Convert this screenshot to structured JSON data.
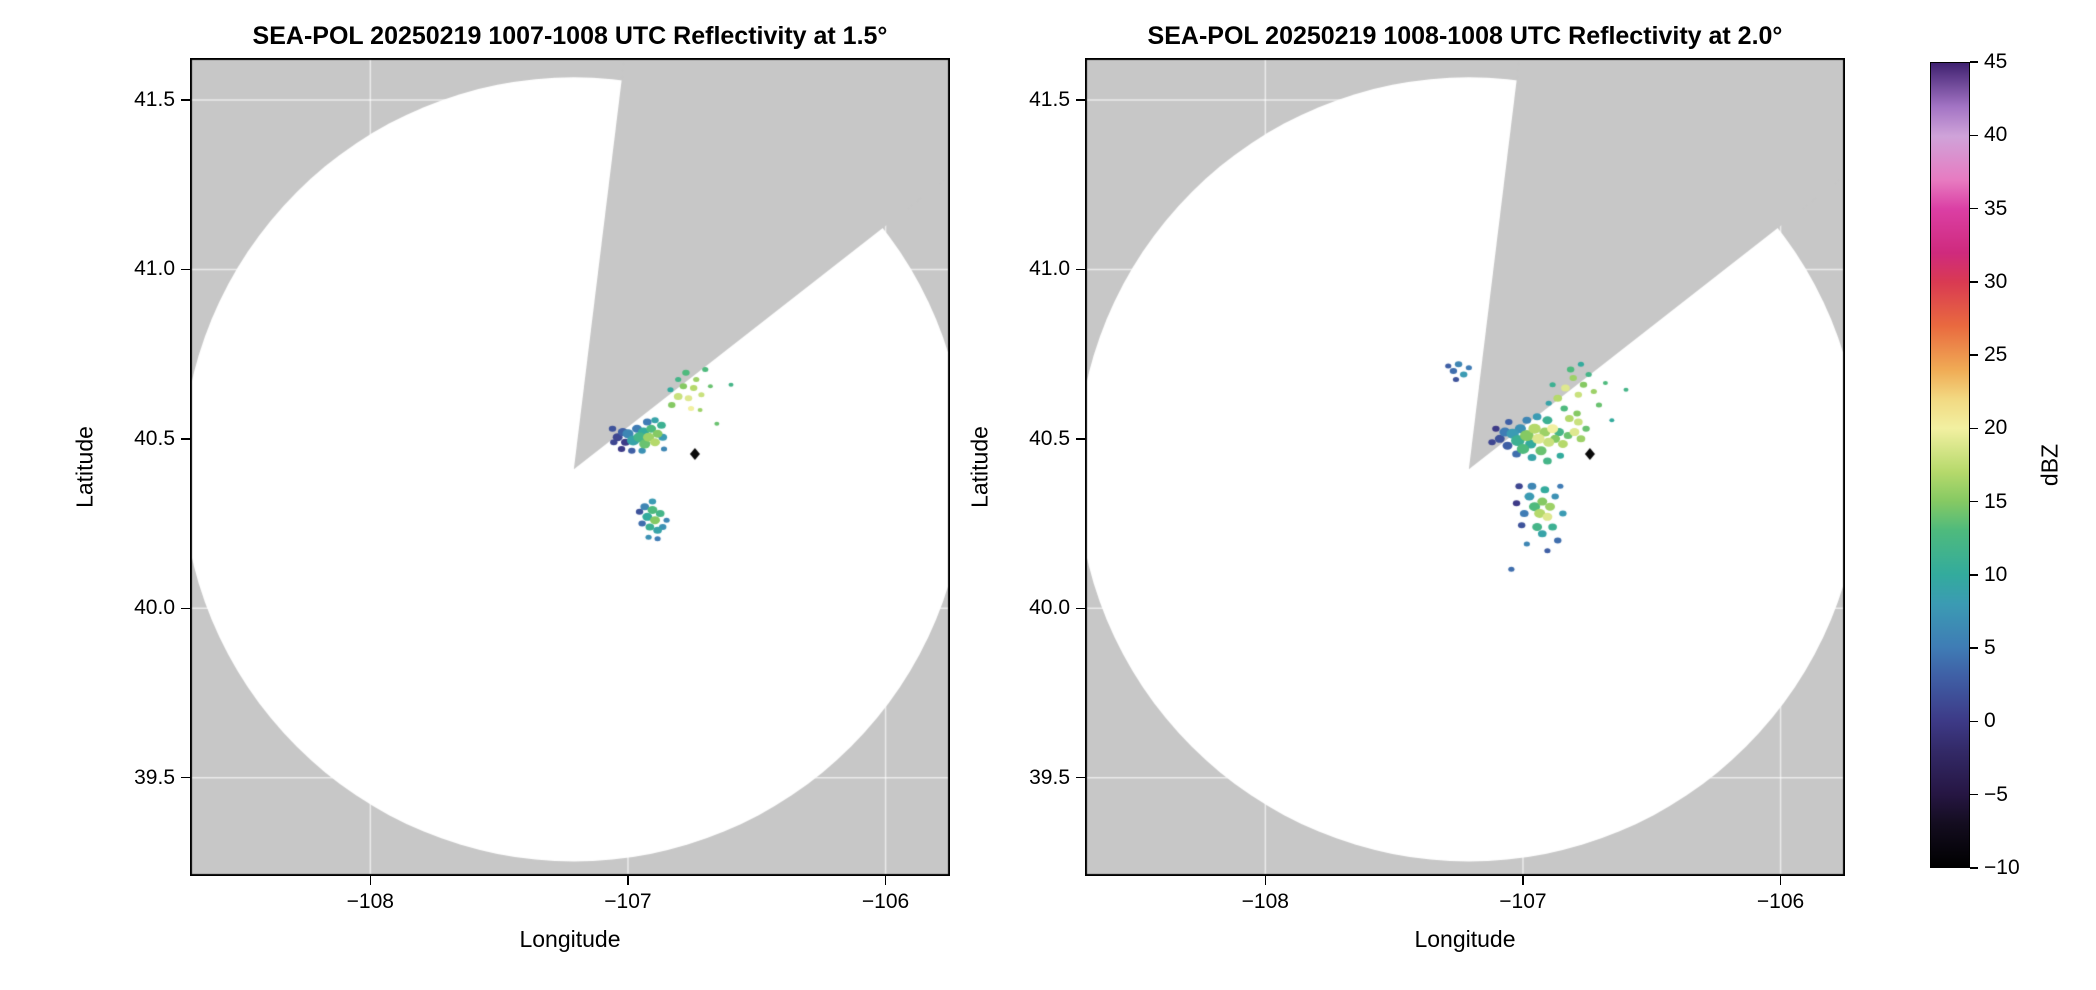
{
  "chart_data": {
    "type": "heatmap",
    "panels": [
      {
        "title": "SEA-POL 20250219 1007-1008 UTC Reflectivity at 1.5°",
        "xlabel": "Longitude",
        "ylabel": "Latitude",
        "xlim": [
          -108.7,
          -105.75
        ],
        "ylim": [
          39.21,
          41.624
        ],
        "x_ticks": {
          "values": [
            -108,
            -107,
            -106
          ],
          "labels": [
            "−108",
            "−107",
            "−106"
          ]
        },
        "y_ticks": {
          "values": [
            41.5,
            41.0,
            40.5,
            40.0,
            39.5
          ],
          "labels": [
            "41.5",
            "41.0",
            "40.5",
            "40.0",
            "39.5"
          ]
        },
        "radar": {
          "center_lon": -107.21,
          "center_lat": 40.41,
          "radius_lon_deg": 1.522,
          "radius_lat_deg": 1.157,
          "blocked_sector_deg": [
            7,
            53
          ]
        },
        "site_marker": {
          "lon": -106.74,
          "lat": 40.455
        },
        "echoes": [
          [
            -107.04,
            40.505,
            1,
            8
          ],
          [
            -107.02,
            40.52,
            3,
            8
          ],
          [
            -107.01,
            40.49,
            0,
            7
          ],
          [
            -107.0,
            40.515,
            6,
            9
          ],
          [
            -106.98,
            40.495,
            9,
            10
          ],
          [
            -106.965,
            40.53,
            5,
            8
          ],
          [
            -106.955,
            40.505,
            12,
            10
          ],
          [
            -106.94,
            40.52,
            10,
            9
          ],
          [
            -106.935,
            40.485,
            14,
            9
          ],
          [
            -106.92,
            40.505,
            16,
            9
          ],
          [
            -106.91,
            40.53,
            13,
            8
          ],
          [
            -106.895,
            40.49,
            17,
            8
          ],
          [
            -106.885,
            40.515,
            15,
            8
          ],
          [
            -106.87,
            40.54,
            11,
            7
          ],
          [
            -106.865,
            40.505,
            8,
            7
          ],
          [
            -106.925,
            40.55,
            5,
            7
          ],
          [
            -106.895,
            40.555,
            9,
            6
          ],
          [
            -107.025,
            40.47,
            0,
            6
          ],
          [
            -106.985,
            40.465,
            3,
            6
          ],
          [
            -106.945,
            40.465,
            7,
            6
          ],
          [
            -106.86,
            40.47,
            6,
            5
          ],
          [
            -107.06,
            40.53,
            2,
            6
          ],
          [
            -107.055,
            40.49,
            1,
            6
          ],
          [
            -106.83,
            40.6,
            15,
            6
          ],
          [
            -106.805,
            40.625,
            18,
            7
          ],
          [
            -106.785,
            40.655,
            15,
            6
          ],
          [
            -106.765,
            40.62,
            19,
            6
          ],
          [
            -106.745,
            40.65,
            17,
            6
          ],
          [
            -106.775,
            40.695,
            13,
            6
          ],
          [
            -106.735,
            40.675,
            16,
            5
          ],
          [
            -106.805,
            40.675,
            12,
            5
          ],
          [
            -106.715,
            40.63,
            18,
            5
          ],
          [
            -106.755,
            40.59,
            20,
            5
          ],
          [
            -106.7,
            40.705,
            13,
            5
          ],
          [
            -106.835,
            40.645,
            10,
            5
          ],
          [
            -106.68,
            40.655,
            14,
            4
          ],
          [
            -106.72,
            40.585,
            16,
            4
          ],
          [
            -106.935,
            40.3,
            6,
            7
          ],
          [
            -106.925,
            40.27,
            10,
            8
          ],
          [
            -106.905,
            40.29,
            13,
            8
          ],
          [
            -106.895,
            40.26,
            15,
            8
          ],
          [
            -106.915,
            40.24,
            11,
            7
          ],
          [
            -106.885,
            40.23,
            9,
            7
          ],
          [
            -106.945,
            40.25,
            4,
            6
          ],
          [
            -106.905,
            40.315,
            8,
            6
          ],
          [
            -106.875,
            40.28,
            12,
            7
          ],
          [
            -106.865,
            40.24,
            7,
            6
          ],
          [
            -106.955,
            40.285,
            2,
            6
          ],
          [
            -106.885,
            40.205,
            5,
            5
          ],
          [
            -106.92,
            40.21,
            7,
            5
          ],
          [
            -106.85,
            40.26,
            6,
            5
          ],
          [
            -106.655,
            40.545,
            14,
            4
          ],
          [
            -106.6,
            40.66,
            12,
            4
          ]
        ]
      },
      {
        "title": "SEA-POL 20250219 1008-1008 UTC Reflectivity at 2.0°",
        "xlabel": "Longitude",
        "ylabel": "Latitude",
        "xlim": [
          -108.7,
          -105.75
        ],
        "ylim": [
          39.21,
          41.624
        ],
        "x_ticks": {
          "values": [
            -108,
            -107,
            -106
          ],
          "labels": [
            "−108",
            "−107",
            "−106"
          ]
        },
        "y_ticks": {
          "values": [
            41.5,
            41.0,
            40.5,
            40.0,
            39.5
          ],
          "labels": [
            "41.5",
            "41.0",
            "40.5",
            "40.0",
            "39.5"
          ]
        },
        "radar": {
          "center_lon": -107.21,
          "center_lat": 40.41,
          "radius_lon_deg": 1.522,
          "radius_lat_deg": 1.157,
          "blocked_sector_deg": [
            7,
            53
          ]
        },
        "site_marker": {
          "lon": -106.74,
          "lat": 40.455
        },
        "echoes": [
          [
            -107.09,
            40.5,
            2,
            8
          ],
          [
            -107.07,
            40.52,
            5,
            9
          ],
          [
            -107.06,
            40.48,
            3,
            8
          ],
          [
            -107.04,
            40.515,
            8,
            10
          ],
          [
            -107.02,
            40.495,
            11,
            11
          ],
          [
            -107.01,
            40.53,
            7,
            9
          ],
          [
            -107.0,
            40.47,
            13,
            10
          ],
          [
            -106.985,
            40.51,
            15,
            11
          ],
          [
            -106.97,
            40.485,
            10,
            9
          ],
          [
            -106.955,
            40.53,
            17,
            10
          ],
          [
            -106.94,
            40.5,
            19,
            10
          ],
          [
            -106.93,
            40.465,
            14,
            9
          ],
          [
            -106.915,
            40.52,
            16,
            9
          ],
          [
            -106.9,
            40.49,
            18,
            9
          ],
          [
            -106.885,
            40.53,
            20,
            9
          ],
          [
            -106.875,
            40.5,
            15,
            8
          ],
          [
            -106.86,
            40.52,
            12,
            8
          ],
          [
            -106.845,
            40.485,
            17,
            8
          ],
          [
            -106.825,
            40.51,
            14,
            7
          ],
          [
            -106.905,
            40.555,
            11,
            8
          ],
          [
            -106.945,
            40.565,
            8,
            7
          ],
          [
            -106.985,
            40.555,
            6,
            7
          ],
          [
            -107.025,
            40.455,
            4,
            7
          ],
          [
            -106.965,
            40.445,
            9,
            7
          ],
          [
            -106.905,
            40.435,
            12,
            7
          ],
          [
            -106.855,
            40.45,
            10,
            6
          ],
          [
            -107.105,
            40.53,
            0,
            6
          ],
          [
            -107.055,
            40.55,
            3,
            6
          ],
          [
            -107.12,
            40.49,
            1,
            6
          ],
          [
            -106.8,
            40.52,
            19,
            8
          ],
          [
            -106.785,
            40.55,
            18,
            7
          ],
          [
            -106.775,
            40.5,
            16,
            7
          ],
          [
            -106.79,
            40.575,
            15,
            6
          ],
          [
            -106.755,
            40.53,
            14,
            6
          ],
          [
            -106.82,
            40.56,
            17,
            7
          ],
          [
            -106.84,
            40.59,
            13,
            6
          ],
          [
            -106.865,
            40.62,
            17,
            7
          ],
          [
            -106.835,
            40.65,
            19,
            7
          ],
          [
            -106.805,
            40.68,
            16,
            6
          ],
          [
            -106.785,
            40.63,
            18,
            6
          ],
          [
            -106.765,
            40.66,
            15,
            6
          ],
          [
            -106.815,
            40.705,
            13,
            6
          ],
          [
            -106.745,
            40.69,
            12,
            5
          ],
          [
            -106.725,
            40.64,
            16,
            5
          ],
          [
            -106.885,
            40.66,
            11,
            5
          ],
          [
            -106.775,
            40.72,
            10,
            5
          ],
          [
            -106.705,
            40.6,
            14,
            5
          ],
          [
            -106.9,
            40.605,
            9,
            5
          ],
          [
            -106.68,
            40.665,
            13,
            4
          ],
          [
            -106.975,
            40.33,
            8,
            8
          ],
          [
            -106.955,
            40.3,
            13,
            9
          ],
          [
            -106.935,
            40.28,
            17,
            9
          ],
          [
            -106.925,
            40.315,
            15,
            8
          ],
          [
            -106.905,
            40.27,
            19,
            8
          ],
          [
            -106.895,
            40.3,
            16,
            8
          ],
          [
            -106.945,
            40.24,
            12,
            8
          ],
          [
            -106.925,
            40.22,
            9,
            7
          ],
          [
            -106.885,
            40.24,
            11,
            7
          ],
          [
            -106.995,
            40.28,
            5,
            7
          ],
          [
            -106.965,
            40.36,
            6,
            7
          ],
          [
            -106.915,
            40.35,
            10,
            7
          ],
          [
            -106.875,
            40.33,
            7,
            6
          ],
          [
            -106.865,
            40.2,
            4,
            6
          ],
          [
            -107.005,
            40.245,
            2,
            6
          ],
          [
            -106.985,
            40.19,
            6,
            5
          ],
          [
            -106.845,
            40.28,
            8,
            6
          ],
          [
            -107.025,
            40.31,
            0,
            6
          ],
          [
            -107.015,
            40.36,
            1,
            6
          ],
          [
            -106.905,
            40.17,
            3,
            5
          ],
          [
            -106.855,
            40.36,
            5,
            5
          ],
          [
            -107.27,
            40.7,
            4,
            6
          ],
          [
            -107.25,
            40.72,
            6,
            6
          ],
          [
            -107.23,
            40.69,
            8,
            6
          ],
          [
            -107.26,
            40.675,
            2,
            5
          ],
          [
            -107.21,
            40.71,
            5,
            5
          ],
          [
            -107.29,
            40.715,
            3,
            5
          ],
          [
            -107.045,
            40.115,
            4,
            5
          ],
          [
            -106.6,
            40.645,
            12,
            4
          ],
          [
            -106.655,
            40.555,
            10,
            4
          ]
        ]
      }
    ],
    "colorbar": {
      "label": "dBZ",
      "vmin": -10,
      "vmax": 45,
      "ticks": {
        "values": [
          45,
          40,
          35,
          30,
          25,
          20,
          15,
          10,
          5,
          0,
          -5,
          -10
        ],
        "labels": [
          "45",
          "40",
          "35",
          "30",
          "25",
          "20",
          "15",
          "10",
          "5",
          "0",
          "−5",
          "−10"
        ]
      },
      "stops": [
        {
          "v": -10,
          "c": "#000000"
        },
        {
          "v": -7,
          "c": "#140d20"
        },
        {
          "v": -5,
          "c": "#261643"
        },
        {
          "v": -2,
          "c": "#332a68"
        },
        {
          "v": 0,
          "c": "#3d3a87"
        },
        {
          "v": 3,
          "c": "#3f5fa5"
        },
        {
          "v": 5,
          "c": "#3f7cb5"
        },
        {
          "v": 8,
          "c": "#3b9bb3"
        },
        {
          "v": 10,
          "c": "#33ab9d"
        },
        {
          "v": 13,
          "c": "#4eba7d"
        },
        {
          "v": 15,
          "c": "#85c963"
        },
        {
          "v": 17,
          "c": "#b5d96b"
        },
        {
          "v": 20,
          "c": "#f2f0a1"
        },
        {
          "v": 22,
          "c": "#f2d982"
        },
        {
          "v": 24,
          "c": "#f0ab55"
        },
        {
          "v": 27,
          "c": "#e96a3f"
        },
        {
          "v": 30,
          "c": "#d93a52"
        },
        {
          "v": 32,
          "c": "#cf2a7d"
        },
        {
          "v": 35,
          "c": "#db3fa4"
        },
        {
          "v": 37,
          "c": "#e77bc1"
        },
        {
          "v": 40,
          "c": "#cfa3d9"
        },
        {
          "v": 42,
          "c": "#a374c4"
        },
        {
          "v": 45,
          "c": "#3f2170"
        }
      ]
    },
    "style": {
      "outside_color": "#c7c7c7",
      "scan_area_color": "#ffffff",
      "grid_color": "rgba(255,255,255,0.65)",
      "border_color": "#000000",
      "marker_color": "#0a0a0a"
    }
  }
}
